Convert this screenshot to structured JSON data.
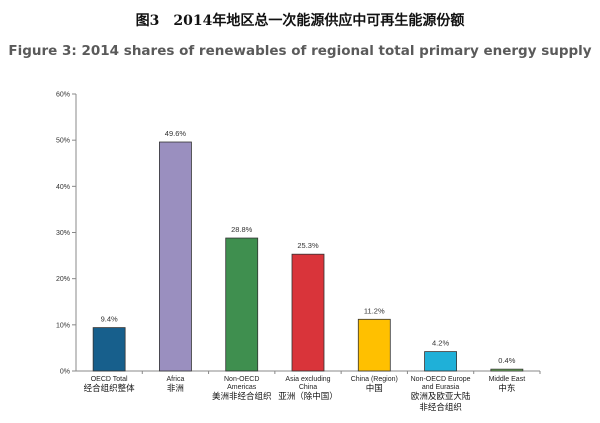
{
  "title_zh": "图3　2014年地区总一次能源供应中可再生能源份额",
  "title_en": "Figure 3: 2014 shares of renewables of regional total primary energy supply",
  "chart_data": {
    "type": "bar",
    "categories": [
      {
        "en": [
          "OECD Total"
        ],
        "zh": [
          "经合组织整体"
        ]
      },
      {
        "en": [
          "Africa"
        ],
        "zh": [
          "非洲"
        ]
      },
      {
        "en": [
          "Non-OECD",
          "Americas"
        ],
        "zh": [
          "美洲非经合组织"
        ]
      },
      {
        "en": [
          "Asia excluding",
          "China"
        ],
        "zh": [
          "亚洲（除中国）"
        ]
      },
      {
        "en": [
          "China (Region)"
        ],
        "zh": [
          "中国"
        ]
      },
      {
        "en": [
          "Non-OECD Europe",
          "and Eurasia"
        ],
        "zh": [
          "欧洲及欧亚大陆",
          "非经合组织"
        ]
      },
      {
        "en": [
          "Middle East"
        ],
        "zh": [
          "中东"
        ]
      }
    ],
    "values": [
      9.4,
      49.6,
      28.8,
      25.3,
      11.2,
      4.2,
      0.4
    ],
    "value_labels": [
      "9.4%",
      "49.6%",
      "28.8%",
      "25.3%",
      "11.2%",
      "4.2%",
      "0.4%"
    ],
    "colors": [
      "#175f8c",
      "#9a8fbf",
      "#3f8f4f",
      "#d9343a",
      "#ffc000",
      "#1fb0d8",
      "#6fb45f"
    ],
    "ylim": [
      0,
      60
    ],
    "yticks": [
      0,
      10,
      20,
      30,
      40,
      50,
      60
    ],
    "ytick_labels": [
      "0%",
      "10%",
      "20%",
      "30%",
      "40%",
      "50%",
      "60%"
    ],
    "grid": false,
    "legend": "none"
  }
}
